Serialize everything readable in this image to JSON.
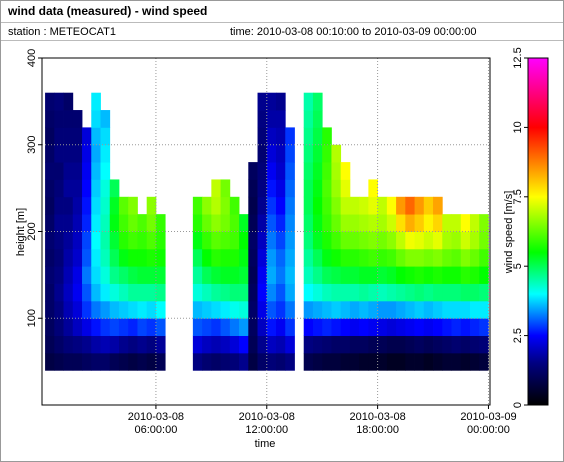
{
  "chart_data": {
    "type": "heatmap",
    "title": "wind data (measured) - wind speed",
    "station": "station : METEOCAT1",
    "time_range": "time: 2010-03-08 00:10:00 to 2010-03-09 00:00:00",
    "xlabel": "time",
    "ylabel": "height [m]",
    "colorbar_label": "wind speed [m/s]",
    "xlim": [
      "2010-03-07 23:50:00",
      "2010-03-09 00:05:00"
    ],
    "xticks": [
      {
        "value": "2010-03-08 06:00:00",
        "label": "2010-03-08\n06:00:00"
      },
      {
        "value": "2010-03-08 12:00:00",
        "label": "2010-03-08\n12:00:00"
      },
      {
        "value": "2010-03-08 18:00:00",
        "label": "2010-03-08\n18:00:00"
      },
      {
        "value": "2010-03-09 00:00:00",
        "label": "2010-03-09\n00:00:00"
      }
    ],
    "ylim": [
      0,
      400
    ],
    "yticks": [
      100,
      200,
      300,
      400
    ],
    "zlim": [
      0,
      12.5
    ],
    "zticks": [
      0,
      2.5,
      5,
      7.5,
      10,
      12.5
    ],
    "colormap": [
      {
        "value": 0,
        "color": "#000000"
      },
      {
        "value": 1.5,
        "color": "#000080"
      },
      {
        "value": 2.5,
        "color": "#0000ff"
      },
      {
        "value": 4,
        "color": "#00ffff"
      },
      {
        "value": 5.5,
        "color": "#00ff00"
      },
      {
        "value": 7.5,
        "color": "#ffff00"
      },
      {
        "value": 10,
        "color": "#ff0000"
      },
      {
        "value": 12.5,
        "color": "#ff00ff"
      }
    ],
    "grid": true,
    "y": [
      50,
      70,
      90,
      110,
      130,
      150,
      170,
      190,
      210,
      230,
      250,
      270,
      290,
      310,
      330,
      350
    ],
    "x": [
      "2010-03-08 00:15:00",
      "2010-03-08 00:45:00",
      "2010-03-08 01:15:00",
      "2010-03-08 01:45:00",
      "2010-03-08 02:15:00",
      "2010-03-08 02:45:00",
      "2010-03-08 03:15:00",
      "2010-03-08 03:45:00",
      "2010-03-08 04:15:00",
      "2010-03-08 04:45:00",
      "2010-03-08 05:15:00",
      "2010-03-08 05:45:00",
      "2010-03-08 06:15:00",
      "2010-03-08 06:45:00",
      "2010-03-08 07:15:00",
      "2010-03-08 07:45:00",
      "2010-03-08 08:15:00",
      "2010-03-08 08:45:00",
      "2010-03-08 09:15:00",
      "2010-03-08 09:45:00",
      "2010-03-08 10:15:00",
      "2010-03-08 10:45:00",
      "2010-03-08 11:15:00",
      "2010-03-08 11:45:00",
      "2010-03-08 12:15:00",
      "2010-03-08 12:45:00",
      "2010-03-08 13:15:00",
      "2010-03-08 13:45:00",
      "2010-03-08 14:15:00",
      "2010-03-08 14:45:00",
      "2010-03-08 15:15:00",
      "2010-03-08 15:45:00",
      "2010-03-08 16:15:00",
      "2010-03-08 16:45:00",
      "2010-03-08 17:15:00",
      "2010-03-08 17:45:00",
      "2010-03-08 18:15:00",
      "2010-03-08 18:45:00",
      "2010-03-08 19:15:00",
      "2010-03-08 19:45:00",
      "2010-03-08 20:15:00",
      "2010-03-08 20:45:00",
      "2010-03-08 21:15:00",
      "2010-03-08 21:45:00",
      "2010-03-08 22:15:00",
      "2010-03-08 22:45:00",
      "2010-03-08 23:15:00",
      "2010-03-08 23:45:00"
    ],
    "values": [
      [
        0.8,
        1.0,
        1.1,
        1.2,
        1.2,
        1.3,
        1.2,
        1.3,
        1.2,
        1.1,
        1.2,
        1.3,
        1.2,
        1.1,
        1.2,
        1.3
      ],
      [
        0.9,
        1.2,
        1.4,
        1.5,
        1.6,
        1.5,
        1.4,
        1.5,
        1.6,
        1.5,
        1.4,
        1.3,
        1.5,
        1.4,
        1.3,
        1.4
      ],
      [
        1.0,
        1.4,
        1.7,
        1.9,
        2.0,
        1.9,
        1.8,
        1.7,
        1.6,
        1.5,
        1.7,
        1.6,
        1.5,
        1.4,
        1.3,
        1.2
      ],
      [
        1.0,
        1.5,
        2.0,
        2.2,
        2.4,
        2.3,
        2.1,
        2.0,
        1.9,
        1.8,
        1.7,
        1.6,
        1.5,
        1.4,
        1.3,
        null
      ],
      [
        1.1,
        1.6,
        2.3,
        2.8,
        3.0,
        3.2,
        3.0,
        2.9,
        2.7,
        2.6,
        2.5,
        2.4,
        2.3,
        2.2,
        null,
        null
      ],
      [
        1.2,
        1.8,
        2.6,
        3.2,
        3.6,
        3.8,
        3.9,
        4.0,
        3.9,
        3.8,
        3.7,
        3.6,
        3.5,
        3.6,
        3.8,
        3.9
      ],
      [
        1.2,
        1.9,
        2.8,
        3.4,
        3.9,
        4.2,
        4.4,
        4.5,
        4.4,
        4.3,
        4.2,
        4.0,
        3.9,
        3.8,
        3.6,
        null
      ],
      [
        1.0,
        1.8,
        2.9,
        3.6,
        4.2,
        4.7,
        5.0,
        5.2,
        5.4,
        5.3,
        5.0,
        null,
        null,
        null,
        null,
        null
      ],
      [
        0.9,
        1.6,
        2.8,
        3.7,
        4.4,
        4.9,
        5.4,
        5.8,
        6.0,
        6.2,
        null,
        null,
        null,
        null,
        null,
        null
      ],
      [
        0.8,
        1.5,
        2.7,
        3.8,
        4.6,
        5.1,
        5.6,
        6.0,
        6.3,
        6.5,
        null,
        null,
        null,
        null,
        null,
        null
      ],
      [
        0.9,
        1.6,
        2.9,
        3.9,
        4.6,
        5.2,
        5.6,
        5.9,
        6.1,
        null,
        null,
        null,
        null,
        null,
        null,
        null
      ],
      [
        0.8,
        1.5,
        2.8,
        3.8,
        4.6,
        5.2,
        5.7,
        6.1,
        6.4,
        6.6,
        null,
        null,
        null,
        null,
        null,
        null
      ],
      [
        1.0,
        1.7,
        3.0,
        4.0,
        4.7,
        5.2,
        5.6,
        5.8,
        5.9,
        null,
        null,
        null,
        null,
        null,
        null,
        null
      ],
      [
        null,
        null,
        null,
        null,
        null,
        null,
        null,
        null,
        null,
        null,
        null,
        null,
        null,
        null,
        null,
        null
      ],
      [
        null,
        null,
        null,
        null,
        null,
        null,
        null,
        null,
        null,
        null,
        null,
        null,
        null,
        null,
        null,
        null
      ],
      [
        null,
        null,
        null,
        null,
        null,
        null,
        null,
        null,
        null,
        null,
        null,
        null,
        null,
        null,
        null,
        null
      ],
      [
        1.5,
        2.2,
        3.0,
        3.6,
        4.2,
        4.6,
        5.0,
        5.4,
        5.8,
        6.0,
        null,
        null,
        null,
        null,
        null,
        null
      ],
      [
        1.3,
        2.0,
        2.9,
        3.7,
        4.4,
        5.0,
        5.5,
        5.9,
        6.3,
        6.6,
        null,
        null,
        null,
        null,
        null,
        null
      ],
      [
        1.2,
        1.9,
        2.8,
        3.8,
        4.6,
        5.2,
        5.8,
        6.2,
        6.6,
        6.9,
        7.0,
        null,
        null,
        null,
        null,
        null
      ],
      [
        1.3,
        2.0,
        3.0,
        3.9,
        4.7,
        5.3,
        5.7,
        6.1,
        6.4,
        6.5,
        6.4,
        null,
        null,
        null,
        null,
        null
      ],
      [
        1.4,
        2.2,
        3.2,
        4.1,
        4.8,
        5.3,
        5.7,
        6.0,
        6.1,
        6.0,
        null,
        null,
        null,
        null,
        null,
        null
      ],
      [
        1.6,
        2.5,
        3.4,
        4.2,
        4.8,
        5.2,
        5.4,
        5.5,
        5.3,
        null,
        null,
        null,
        null,
        null,
        null,
        null
      ],
      [
        0.8,
        1.0,
        1.1,
        1.2,
        1.1,
        1.0,
        1.1,
        1.2,
        1.0,
        0.9,
        1.0,
        1.1,
        null,
        null,
        null,
        null
      ],
      [
        1.2,
        1.6,
        2.0,
        2.3,
        2.5,
        2.4,
        2.2,
        2.0,
        1.8,
        1.6,
        1.5,
        1.4,
        1.3,
        1.4,
        1.5,
        1.6
      ],
      [
        1.4,
        2.0,
        2.6,
        3.0,
        3.3,
        3.5,
        3.4,
        3.2,
        3.0,
        2.8,
        2.6,
        2.4,
        2.2,
        2.0,
        1.8,
        1.7
      ],
      [
        1.3,
        1.9,
        2.4,
        2.8,
        3.0,
        3.2,
        3.1,
        2.9,
        2.7,
        2.5,
        2.3,
        2.1,
        2.0,
        1.9,
        1.8,
        1.6
      ],
      [
        1.5,
        2.2,
        2.8,
        3.2,
        3.5,
        3.6,
        3.5,
        3.4,
        3.3,
        3.2,
        3.1,
        3.0,
        2.9,
        2.8,
        null,
        null
      ],
      [
        null,
        null,
        null,
        null,
        null,
        null,
        null,
        null,
        null,
        null,
        null,
        null,
        null,
        null,
        null,
        null
      ],
      [
        0.9,
        1.5,
        2.5,
        3.4,
        4.0,
        4.4,
        4.6,
        4.8,
        4.9,
        5.0,
        5.0,
        4.9,
        4.8,
        4.7,
        4.6,
        4.5
      ],
      [
        0.8,
        1.4,
        2.6,
        3.5,
        4.2,
        4.7,
        5.0,
        5.3,
        5.4,
        5.5,
        5.4,
        5.3,
        5.2,
        5.1,
        5.0,
        4.9
      ],
      [
        0.7,
        1.3,
        2.7,
        3.6,
        4.4,
        5.0,
        5.4,
        5.7,
        5.9,
        6.0,
        6.1,
        6.0,
        5.9,
        5.8,
        null,
        null
      ],
      [
        0.7,
        1.2,
        2.6,
        3.7,
        4.5,
        5.1,
        5.6,
        6.0,
        6.3,
        6.5,
        6.7,
        6.8,
        6.9,
        null,
        null,
        null
      ],
      [
        0.6,
        1.2,
        2.5,
        3.6,
        4.5,
        5.2,
        5.8,
        6.3,
        6.7,
        7.0,
        7.3,
        7.5,
        null,
        null,
        null,
        null
      ],
      [
        0.6,
        1.1,
        2.4,
        3.5,
        4.5,
        5.2,
        5.8,
        6.3,
        6.7,
        7.0,
        null,
        null,
        null,
        null,
        null,
        null
      ],
      [
        0.5,
        1.1,
        2.5,
        3.6,
        4.6,
        5.3,
        5.9,
        6.4,
        6.8,
        7.1,
        null,
        null,
        null,
        null,
        null,
        null
      ],
      [
        0.5,
        1.0,
        2.4,
        3.5,
        4.5,
        5.3,
        6.0,
        6.5,
        6.9,
        7.3,
        7.5,
        null,
        null,
        null,
        null,
        null
      ],
      [
        0.5,
        1.0,
        2.3,
        3.4,
        4.4,
        5.2,
        5.9,
        6.4,
        6.8,
        7.0,
        null,
        null,
        null,
        null,
        null,
        null
      ],
      [
        0.4,
        0.9,
        2.2,
        3.4,
        4.5,
        5.3,
        6.0,
        6.6,
        7.1,
        7.5,
        null,
        null,
        null,
        null,
        null,
        null
      ],
      [
        0.4,
        0.9,
        2.3,
        3.5,
        4.6,
        5.5,
        6.3,
        7.0,
        7.8,
        8.5,
        null,
        null,
        null,
        null,
        null,
        null
      ],
      [
        0.5,
        1.0,
        2.4,
        3.6,
        4.7,
        5.6,
        6.5,
        7.4,
        8.3,
        9.0,
        null,
        null,
        null,
        null,
        null,
        null
      ],
      [
        0.5,
        1.1,
        2.5,
        3.7,
        4.8,
        5.7,
        6.5,
        7.3,
        8.0,
        8.5,
        null,
        null,
        null,
        null,
        null,
        null
      ],
      [
        0.4,
        1.0,
        2.4,
        3.6,
        4.7,
        5.6,
        6.4,
        7.1,
        7.6,
        8.0,
        null,
        null,
        null,
        null,
        null,
        null
      ],
      [
        0.5,
        1.1,
        2.5,
        3.7,
        4.8,
        5.7,
        6.5,
        7.3,
        7.9,
        8.4,
        null,
        null,
        null,
        null,
        null,
        null
      ],
      [
        0.6,
        1.2,
        2.6,
        3.8,
        4.8,
        5.6,
        6.3,
        6.8,
        7.0,
        null,
        null,
        null,
        null,
        null,
        null,
        null
      ],
      [
        0.6,
        1.3,
        2.7,
        3.8,
        4.8,
        5.6,
        6.2,
        6.7,
        7.0,
        null,
        null,
        null,
        null,
        null,
        null,
        null
      ],
      [
        0.5,
        1.2,
        2.6,
        3.8,
        4.9,
        5.8,
        6.5,
        7.1,
        7.5,
        null,
        null,
        null,
        null,
        null,
        null,
        null
      ],
      [
        0.6,
        1.3,
        2.7,
        3.9,
        4.9,
        5.7,
        6.3,
        6.8,
        7.0,
        null,
        null,
        null,
        null,
        null,
        null,
        null
      ],
      [
        0.7,
        1.4,
        2.8,
        3.9,
        4.8,
        5.5,
        6.0,
        6.4,
        6.5,
        null,
        null,
        null,
        null,
        null,
        null,
        null
      ]
    ]
  }
}
